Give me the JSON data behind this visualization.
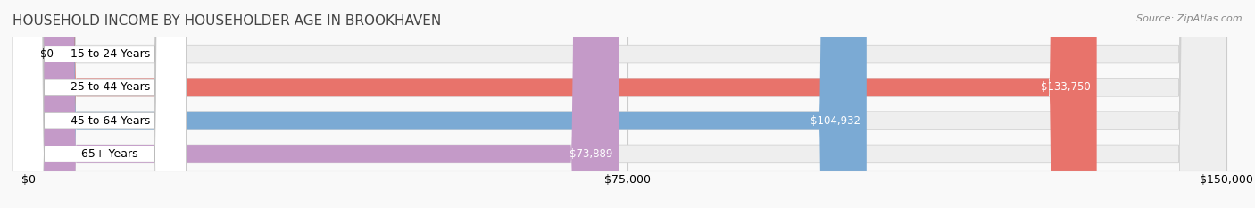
{
  "title": "HOUSEHOLD INCOME BY HOUSEHOLDER AGE IN BROOKHAVEN",
  "source": "Source: ZipAtlas.com",
  "categories": [
    "15 to 24 Years",
    "25 to 44 Years",
    "45 to 64 Years",
    "65+ Years"
  ],
  "values": [
    0,
    133750,
    104932,
    73889
  ],
  "value_labels": [
    "$0",
    "$133,750",
    "$104,932",
    "$73,889"
  ],
  "bar_colors": [
    "#f5c892",
    "#e8736b",
    "#7baad4",
    "#c49ac8"
  ],
  "bar_bg_color": "#eeeeee",
  "xlim": [
    0,
    150000
  ],
  "xticks": [
    0,
    75000,
    150000
  ],
  "xtick_labels": [
    "$0",
    "$75,000",
    "$150,000"
  ],
  "title_fontsize": 11,
  "source_fontsize": 8,
  "label_fontsize": 9,
  "value_fontsize": 8.5,
  "bar_height": 0.55,
  "bg_color": "#f9f9f9",
  "grid_color": "#cccccc"
}
